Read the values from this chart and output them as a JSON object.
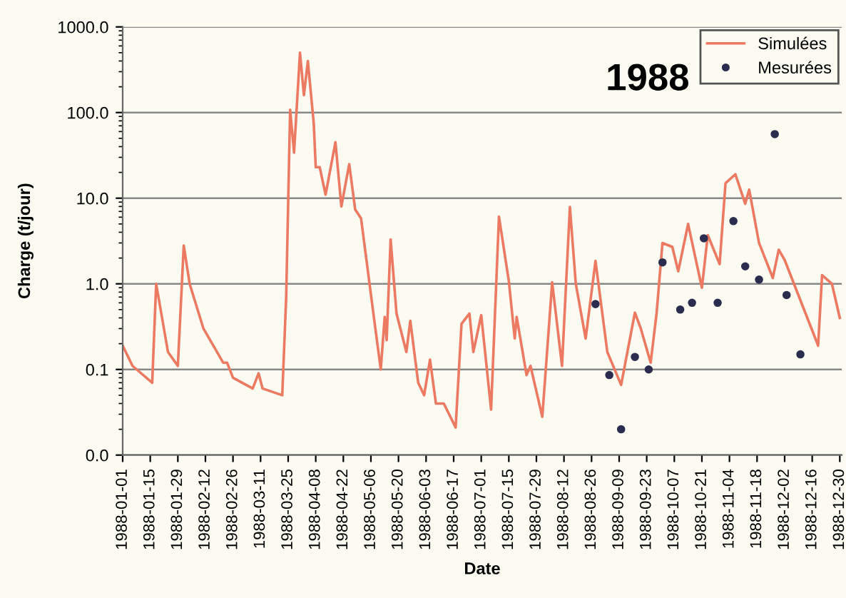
{
  "chart_data": {
    "type": "line",
    "title": "1988",
    "xlabel": "Date",
    "ylabel": "Charge (t/jour)",
    "log": "y",
    "grid": "y",
    "legend": "top right",
    "ylim": [
      0.01,
      1000
    ],
    "yticks": [
      {
        "value": 0.01,
        "label": "0.0"
      },
      {
        "value": 0.1,
        "label": "0.1"
      },
      {
        "value": 1,
        "label": "1.0"
      },
      {
        "value": 10,
        "label": "10.0"
      },
      {
        "value": 100,
        "label": "100.0"
      },
      {
        "value": 1000,
        "label": "1000.0"
      }
    ],
    "xlim": [
      "1988-01-01",
      "1988-12-31"
    ],
    "xticks": [
      "1988-01-01",
      "1988-01-15",
      "1988-01-29",
      "1988-02-12",
      "1988-02-26",
      "1988-03-11",
      "1988-03-25",
      "1988-04-08",
      "1988-04-22",
      "1988-05-06",
      "1988-05-20",
      "1988-06-03",
      "1988-06-17",
      "1988-07-01",
      "1988-07-15",
      "1988-07-29",
      "1988-08-12",
      "1988-08-26",
      "1988-09-09",
      "1988-09-23",
      "1988-10-07",
      "1988-10-21",
      "1988-11-04",
      "1988-11-18",
      "1988-12-02",
      "1988-12-16",
      "1988-12-30"
    ],
    "series": [
      {
        "name": "Simulées",
        "color": "#ec7a62",
        "marker": "none",
        "x": [
          "1988-01-01",
          "1988-01-06",
          "1988-01-16",
          "1988-01-18",
          "1988-01-21",
          "1988-01-24",
          "1988-01-29",
          "1988-02-01",
          "1988-02-04",
          "1988-02-11",
          "1988-02-21",
          "1988-02-23",
          "1988-02-26",
          "1988-03-07",
          "1988-03-10",
          "1988-03-12",
          "1988-03-22",
          "1988-03-24",
          "1988-03-26",
          "1988-03-28",
          "1988-03-31",
          "1988-04-02",
          "1988-04-04",
          "1988-04-07",
          "1988-04-08",
          "1988-04-10",
          "1988-04-13",
          "1988-04-18",
          "1988-04-21",
          "1988-04-25",
          "1988-04-28",
          "1988-05-01",
          "1988-05-07",
          "1988-05-11",
          "1988-05-13",
          "1988-05-14",
          "1988-05-16",
          "1988-05-19",
          "1988-05-24",
          "1988-05-26",
          "1988-05-30",
          "1988-06-02",
          "1988-06-05",
          "1988-06-08",
          "1988-06-12",
          "1988-06-18",
          "1988-06-21",
          "1988-06-25",
          "1988-06-27",
          "1988-07-01",
          "1988-07-06",
          "1988-07-10",
          "1988-07-15",
          "1988-07-18",
          "1988-07-19",
          "1988-07-24",
          "1988-07-26",
          "1988-08-01",
          "1988-08-06",
          "1988-08-11",
          "1988-08-15",
          "1988-08-18",
          "1988-08-23",
          "1988-08-28",
          "1988-09-03",
          "1988-09-10",
          "1988-09-17",
          "1988-09-20",
          "1988-09-25",
          "1988-09-28",
          "1988-10-01",
          "1988-10-06",
          "1988-10-09",
          "1988-10-14",
          "1988-10-21",
          "1988-10-24",
          "1988-10-30",
          "1988-11-02",
          "1988-11-07",
          "1988-11-12",
          "1988-11-14",
          "1988-11-19",
          "1988-11-26",
          "1988-11-29",
          "1988-12-02",
          "1988-12-19",
          "1988-12-21",
          "1988-12-26",
          "1988-12-30"
        ],
        "values": [
          0.19,
          0.11,
          0.07,
          1.0,
          0.4,
          0.16,
          0.11,
          2.8,
          1.0,
          0.3,
          0.12,
          0.12,
          0.08,
          0.06,
          0.09,
          0.06,
          0.05,
          0.7,
          108,
          34,
          500,
          160,
          400,
          74,
          23,
          23,
          11,
          45,
          8,
          25,
          7.4,
          5.8,
          0.5,
          0.1,
          0.41,
          0.22,
          3.3,
          0.45,
          0.16,
          0.37,
          0.07,
          0.05,
          0.13,
          0.04,
          0.04,
          0.021,
          0.34,
          0.45,
          0.16,
          0.43,
          0.034,
          6.1,
          1.08,
          0.23,
          0.41,
          0.086,
          0.11,
          0.028,
          1.04,
          0.11,
          7.9,
          1.0,
          0.23,
          1.85,
          0.16,
          0.066,
          0.46,
          0.3,
          0.12,
          0.45,
          3.0,
          2.7,
          1.4,
          5.0,
          0.9,
          3.7,
          1.7,
          15,
          19,
          8.6,
          12.6,
          3.0,
          1.17,
          2.5,
          1.9,
          0.19,
          1.26,
          1.0,
          0.4
        ]
      },
      {
        "name": "Mesurées",
        "type": "scatter",
        "color": "#2b2d4e",
        "marker": "circle",
        "x": [
          "1988-08-28",
          "1988-09-04",
          "1988-09-10",
          "1988-09-17",
          "1988-09-24",
          "1988-10-01",
          "1988-10-10",
          "1988-10-16",
          "1988-10-22",
          "1988-10-29",
          "1988-11-06",
          "1988-11-12",
          "1988-11-19",
          "1988-11-27",
          "1988-12-03",
          "1988-12-10"
        ],
        "values": [
          0.58,
          0.086,
          0.02,
          0.14,
          0.1,
          1.78,
          0.5,
          0.6,
          3.4,
          0.6,
          5.4,
          1.6,
          1.12,
          56,
          0.74,
          0.15
        ]
      }
    ]
  }
}
